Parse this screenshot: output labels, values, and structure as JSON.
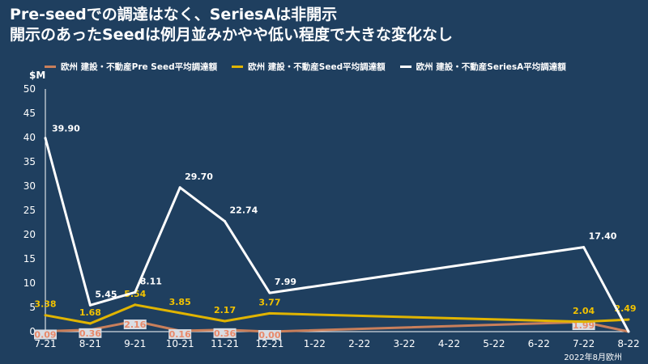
{
  "title_lines": [
    "Pre-seedでの調達はなく、SeriesAは非開示",
    "開示のあったSeedは例月並みかやや低い程度で大きな変化なし"
  ],
  "source_note": "2022年8月欧州",
  "chart_data": {
    "type": "line",
    "ylabel": "$M",
    "ylim": [
      0,
      50
    ],
    "yticks": [
      0,
      5,
      10,
      15,
      20,
      25,
      30,
      35,
      40,
      45,
      50
    ],
    "grid": false,
    "legend_position": "top",
    "categories": [
      "7-21",
      "8-21",
      "9-21",
      "10-21",
      "11-21",
      "12-21",
      "1-22",
      "2-22",
      "3-22",
      "4-22",
      "5-22",
      "6-22",
      "7-22",
      "8-22"
    ],
    "series": [
      {
        "name": "欧州 建設・不動産Pre Seed平均調達額",
        "color": "#c97f5b",
        "label_color": "#e8896a",
        "values": [
          0.09,
          0.36,
          2.16,
          0.16,
          0.36,
          0.0,
          null,
          null,
          null,
          null,
          null,
          null,
          1.99,
          0.0
        ],
        "labels": [
          "0.09",
          "0.36",
          "2.16",
          "0.16",
          "0.36",
          "0.00",
          "",
          "",
          "",
          "",
          "",
          "",
          "1.99",
          ""
        ]
      },
      {
        "name": "欧州 建設・不動産Seed平均調達額",
        "color": "#e0b400",
        "label_color": "#f2c200",
        "values": [
          3.38,
          1.68,
          5.54,
          3.85,
          2.17,
          3.77,
          null,
          null,
          null,
          null,
          null,
          null,
          2.04,
          2.49
        ],
        "labels": [
          "3.38",
          "1.68",
          "5.54",
          "3.85",
          "2.17",
          "3.77",
          "",
          "",
          "",
          "",
          "",
          "",
          "2.04",
          "2.49"
        ]
      },
      {
        "name": "欧州 建設・不動産SeriesA平均調達額",
        "color": "#ffffff",
        "label_color": "#ffffff",
        "values": [
          39.9,
          5.45,
          8.11,
          29.7,
          22.74,
          7.99,
          null,
          null,
          null,
          null,
          null,
          null,
          17.4,
          0.0
        ],
        "labels": [
          "39.90",
          "5.45",
          "8.11",
          "29.70",
          "22.74",
          "7.99",
          "",
          "",
          "",
          "",
          "",
          "",
          "17.40",
          ""
        ]
      }
    ]
  }
}
